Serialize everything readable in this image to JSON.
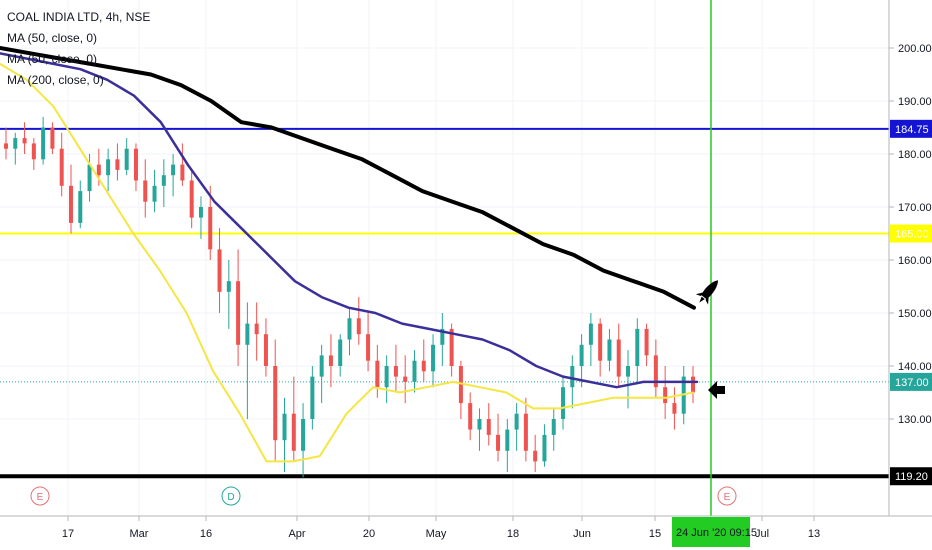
{
  "header": {
    "title": "COAL INDIA LTD, 4h, NSE",
    "indicators": [
      "MA (50, close, 0)",
      "MA (50, close, 0)",
      "MA (200, close, 0)"
    ]
  },
  "colors": {
    "candle_up": "#26a69a",
    "candle_down": "#ef5350",
    "ma_fast": "#f5e642",
    "ma_mid": "#3b2f9a",
    "ma_slow": "#000000",
    "level_blue": "#1414d2",
    "level_yellow": "#ffff00",
    "level_black": "#000000",
    "price_line": "#26a69a",
    "cursor": "#22cc22"
  },
  "chart_data": {
    "type": "candlestick",
    "title": "COAL INDIA LTD, 4h, NSE",
    "y_axis": {
      "ticks": [
        130,
        140,
        150,
        160,
        170,
        180,
        190,
        200
      ],
      "tick_labels": [
        "130.00",
        "140.00",
        "150.00",
        "160.00",
        "170.00",
        "180.00",
        "190.00",
        "200.00"
      ],
      "range": [
        116,
        213
      ]
    },
    "x_axis": {
      "tick_labels": [
        "17",
        "Mar",
        "16",
        "Apr",
        "20",
        "May",
        "18",
        "Jun",
        "15",
        "Jul",
        "13"
      ],
      "cursor_label": "24 Jun '20   09:15"
    },
    "series": [
      {
        "name": "MA (50, close, 0)",
        "color": "#f5e642",
        "values": [
          197,
          194,
          189,
          181,
          173,
          165,
          158,
          150,
          139,
          131,
          122,
          122,
          123,
          131,
          136,
          135,
          136,
          137,
          136,
          135,
          132,
          132,
          133,
          134,
          134,
          134,
          135
        ]
      },
      {
        "name": "MA (50, close, 0)",
        "color": "#3b2f9a",
        "values": [
          199,
          198,
          197,
          196,
          194,
          191,
          186,
          178,
          171,
          166,
          161,
          156,
          153,
          151,
          150,
          148,
          147,
          146,
          145,
          143,
          140,
          138,
          137,
          136,
          137,
          137,
          137
        ]
      },
      {
        "name": "MA (200, close, 0)",
        "color": "#000000",
        "values": [
          200,
          199,
          198,
          197,
          196,
          195,
          193,
          190,
          186,
          185,
          183,
          181,
          179,
          176,
          173,
          171,
          169,
          166,
          163,
          161,
          158,
          156,
          154,
          151
        ]
      }
    ],
    "levels": [
      {
        "value": 184.75,
        "label": "184.75",
        "color": "#1414d2"
      },
      {
        "value": 165.0,
        "label": "165.00",
        "color": "#ffff00"
      },
      {
        "value": 137.0,
        "label": "137.00",
        "color": "#26a69a"
      },
      {
        "value": 119.2,
        "label": "119.20",
        "color": "#000000"
      }
    ],
    "candles": [
      [
        182,
        185,
        179,
        181
      ],
      [
        181,
        184,
        178,
        183
      ],
      [
        183,
        186,
        180,
        182
      ],
      [
        182,
        183,
        177,
        179
      ],
      [
        179,
        187,
        178,
        185
      ],
      [
        185,
        186,
        180,
        181
      ],
      [
        181,
        184,
        172,
        174
      ],
      [
        174,
        178,
        165,
        167
      ],
      [
        167,
        175,
        166,
        173
      ],
      [
        173,
        180,
        171,
        178
      ],
      [
        178,
        181,
        174,
        176
      ],
      [
        176,
        181,
        173,
        179
      ],
      [
        179,
        182,
        175,
        177
      ],
      [
        177,
        183,
        176,
        181
      ],
      [
        181,
        182,
        173,
        175
      ],
      [
        175,
        179,
        168,
        171
      ],
      [
        171,
        177,
        169,
        174
      ],
      [
        174,
        179,
        170,
        176
      ],
      [
        176,
        180,
        172,
        178
      ],
      [
        178,
        182,
        174,
        175
      ],
      [
        175,
        177,
        166,
        168
      ],
      [
        168,
        172,
        164,
        170
      ],
      [
        170,
        174,
        160,
        162
      ],
      [
        162,
        166,
        150,
        154
      ],
      [
        154,
        160,
        147,
        156
      ],
      [
        156,
        162,
        140,
        144
      ],
      [
        144,
        152,
        130,
        148
      ],
      [
        148,
        152,
        141,
        146
      ],
      [
        146,
        149,
        138,
        140
      ],
      [
        140,
        145,
        122,
        126
      ],
      [
        126,
        134,
        120,
        131
      ],
      [
        131,
        138,
        122,
        124
      ],
      [
        124,
        133,
        119,
        130
      ],
      [
        130,
        140,
        128,
        138
      ],
      [
        138,
        144,
        133,
        142
      ],
      [
        142,
        146,
        136,
        140
      ],
      [
        140,
        146,
        138,
        145
      ],
      [
        145,
        151,
        142,
        149
      ],
      [
        149,
        153,
        144,
        146
      ],
      [
        146,
        150,
        139,
        141
      ],
      [
        141,
        144,
        134,
        136
      ],
      [
        136,
        142,
        133,
        140
      ],
      [
        140,
        144,
        135,
        138
      ],
      [
        138,
        142,
        133,
        137
      ],
      [
        137,
        143,
        135,
        141
      ],
      [
        141,
        145,
        137,
        139
      ],
      [
        139,
        146,
        136,
        144
      ],
      [
        144,
        150,
        140,
        147
      ],
      [
        147,
        148,
        138,
        140
      ],
      [
        140,
        141,
        130,
        133
      ],
      [
        133,
        135,
        126,
        128
      ],
      [
        128,
        132,
        124,
        130
      ],
      [
        130,
        133,
        125,
        127
      ],
      [
        127,
        131,
        122,
        124
      ],
      [
        124,
        130,
        120,
        128
      ],
      [
        128,
        133,
        124,
        131
      ],
      [
        131,
        134,
        122,
        124
      ],
      [
        124,
        127,
        120,
        122
      ],
      [
        122,
        129,
        121,
        127
      ],
      [
        127,
        132,
        124,
        130
      ],
      [
        130,
        138,
        128,
        136
      ],
      [
        136,
        142,
        132,
        140
      ],
      [
        140,
        146,
        136,
        144
      ],
      [
        144,
        150,
        140,
        148
      ],
      [
        148,
        149,
        138,
        141
      ],
      [
        141,
        147,
        139,
        145
      ],
      [
        145,
        148,
        136,
        138
      ],
      [
        138,
        143,
        132,
        140
      ],
      [
        140,
        149,
        137,
        147
      ],
      [
        147,
        148,
        140,
        142
      ],
      [
        142,
        145,
        134,
        136
      ],
      [
        136,
        140,
        130,
        133
      ],
      [
        133,
        136,
        128,
        131
      ],
      [
        131,
        140,
        129,
        138
      ],
      [
        138,
        140,
        133,
        135
      ]
    ]
  },
  "annotations": {
    "events": [
      {
        "letter": "E",
        "color": "#e57373"
      },
      {
        "letter": "D",
        "color": "#26a69a"
      },
      {
        "letter": "E",
        "color": "#e57373"
      }
    ],
    "rocket_icon": "rocket",
    "arrow_icon": "left-arrow"
  }
}
